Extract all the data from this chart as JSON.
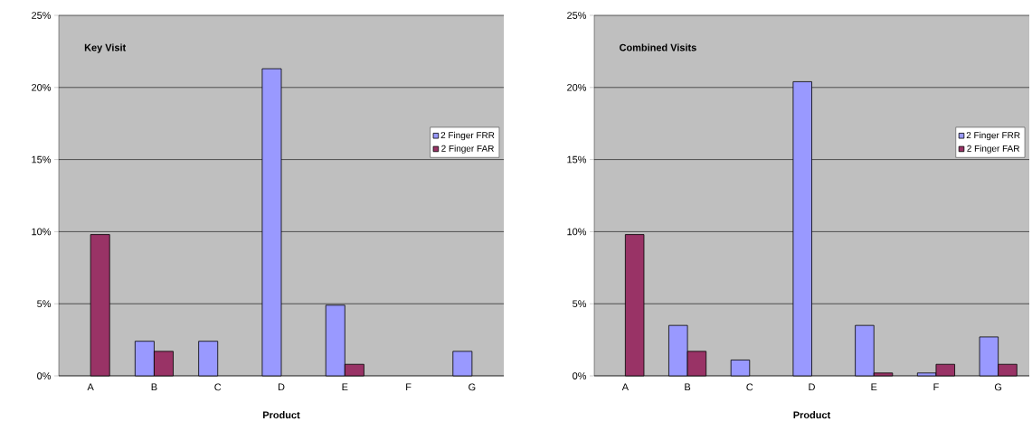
{
  "chart_data": [
    {
      "type": "bar",
      "title": "Key Visit",
      "xlabel": "Product",
      "categories": [
        "A",
        "B",
        "C",
        "D",
        "E",
        "F",
        "G"
      ],
      "series": [
        {
          "name": "2 Finger FRR",
          "color": "#9999ff",
          "values": [
            null,
            2.4,
            2.4,
            21.3,
            4.9,
            null,
            1.7
          ]
        },
        {
          "name": "2 Finger FAR",
          "color": "#993366",
          "values": [
            9.8,
            1.7,
            null,
            null,
            0.8,
            null,
            null
          ]
        }
      ],
      "ylim": [
        0,
        25
      ],
      "yticks": [
        {
          "value": 0,
          "label": "0%"
        },
        {
          "value": 5,
          "label": "5%"
        },
        {
          "value": 10,
          "label": "10%"
        },
        {
          "value": 15,
          "label": "15%"
        },
        {
          "value": 20,
          "label": "20%"
        },
        {
          "value": 25,
          "label": "25%"
        }
      ],
      "grid": "y",
      "legend": "right"
    },
    {
      "type": "bar",
      "title": "Combined Visits",
      "xlabel": "Product",
      "categories": [
        "A",
        "B",
        "C",
        "D",
        "E",
        "F",
        "G"
      ],
      "series": [
        {
          "name": "2 Finger FRR",
          "color": "#9999ff",
          "values": [
            null,
            3.5,
            1.1,
            20.4,
            3.5,
            0.2,
            2.7
          ]
        },
        {
          "name": "2 Finger FAR",
          "color": "#993366",
          "values": [
            9.8,
            1.7,
            null,
            null,
            0.2,
            0.8,
            0.8
          ]
        }
      ],
      "ylim": [
        0,
        25
      ],
      "yticks": [
        {
          "value": 0,
          "label": "0%"
        },
        {
          "value": 5,
          "label": "5%"
        },
        {
          "value": 10,
          "label": "10%"
        },
        {
          "value": 15,
          "label": "15%"
        },
        {
          "value": 20,
          "label": "20%"
        },
        {
          "value": 25,
          "label": "25%"
        }
      ],
      "grid": "y",
      "legend": "right"
    }
  ]
}
